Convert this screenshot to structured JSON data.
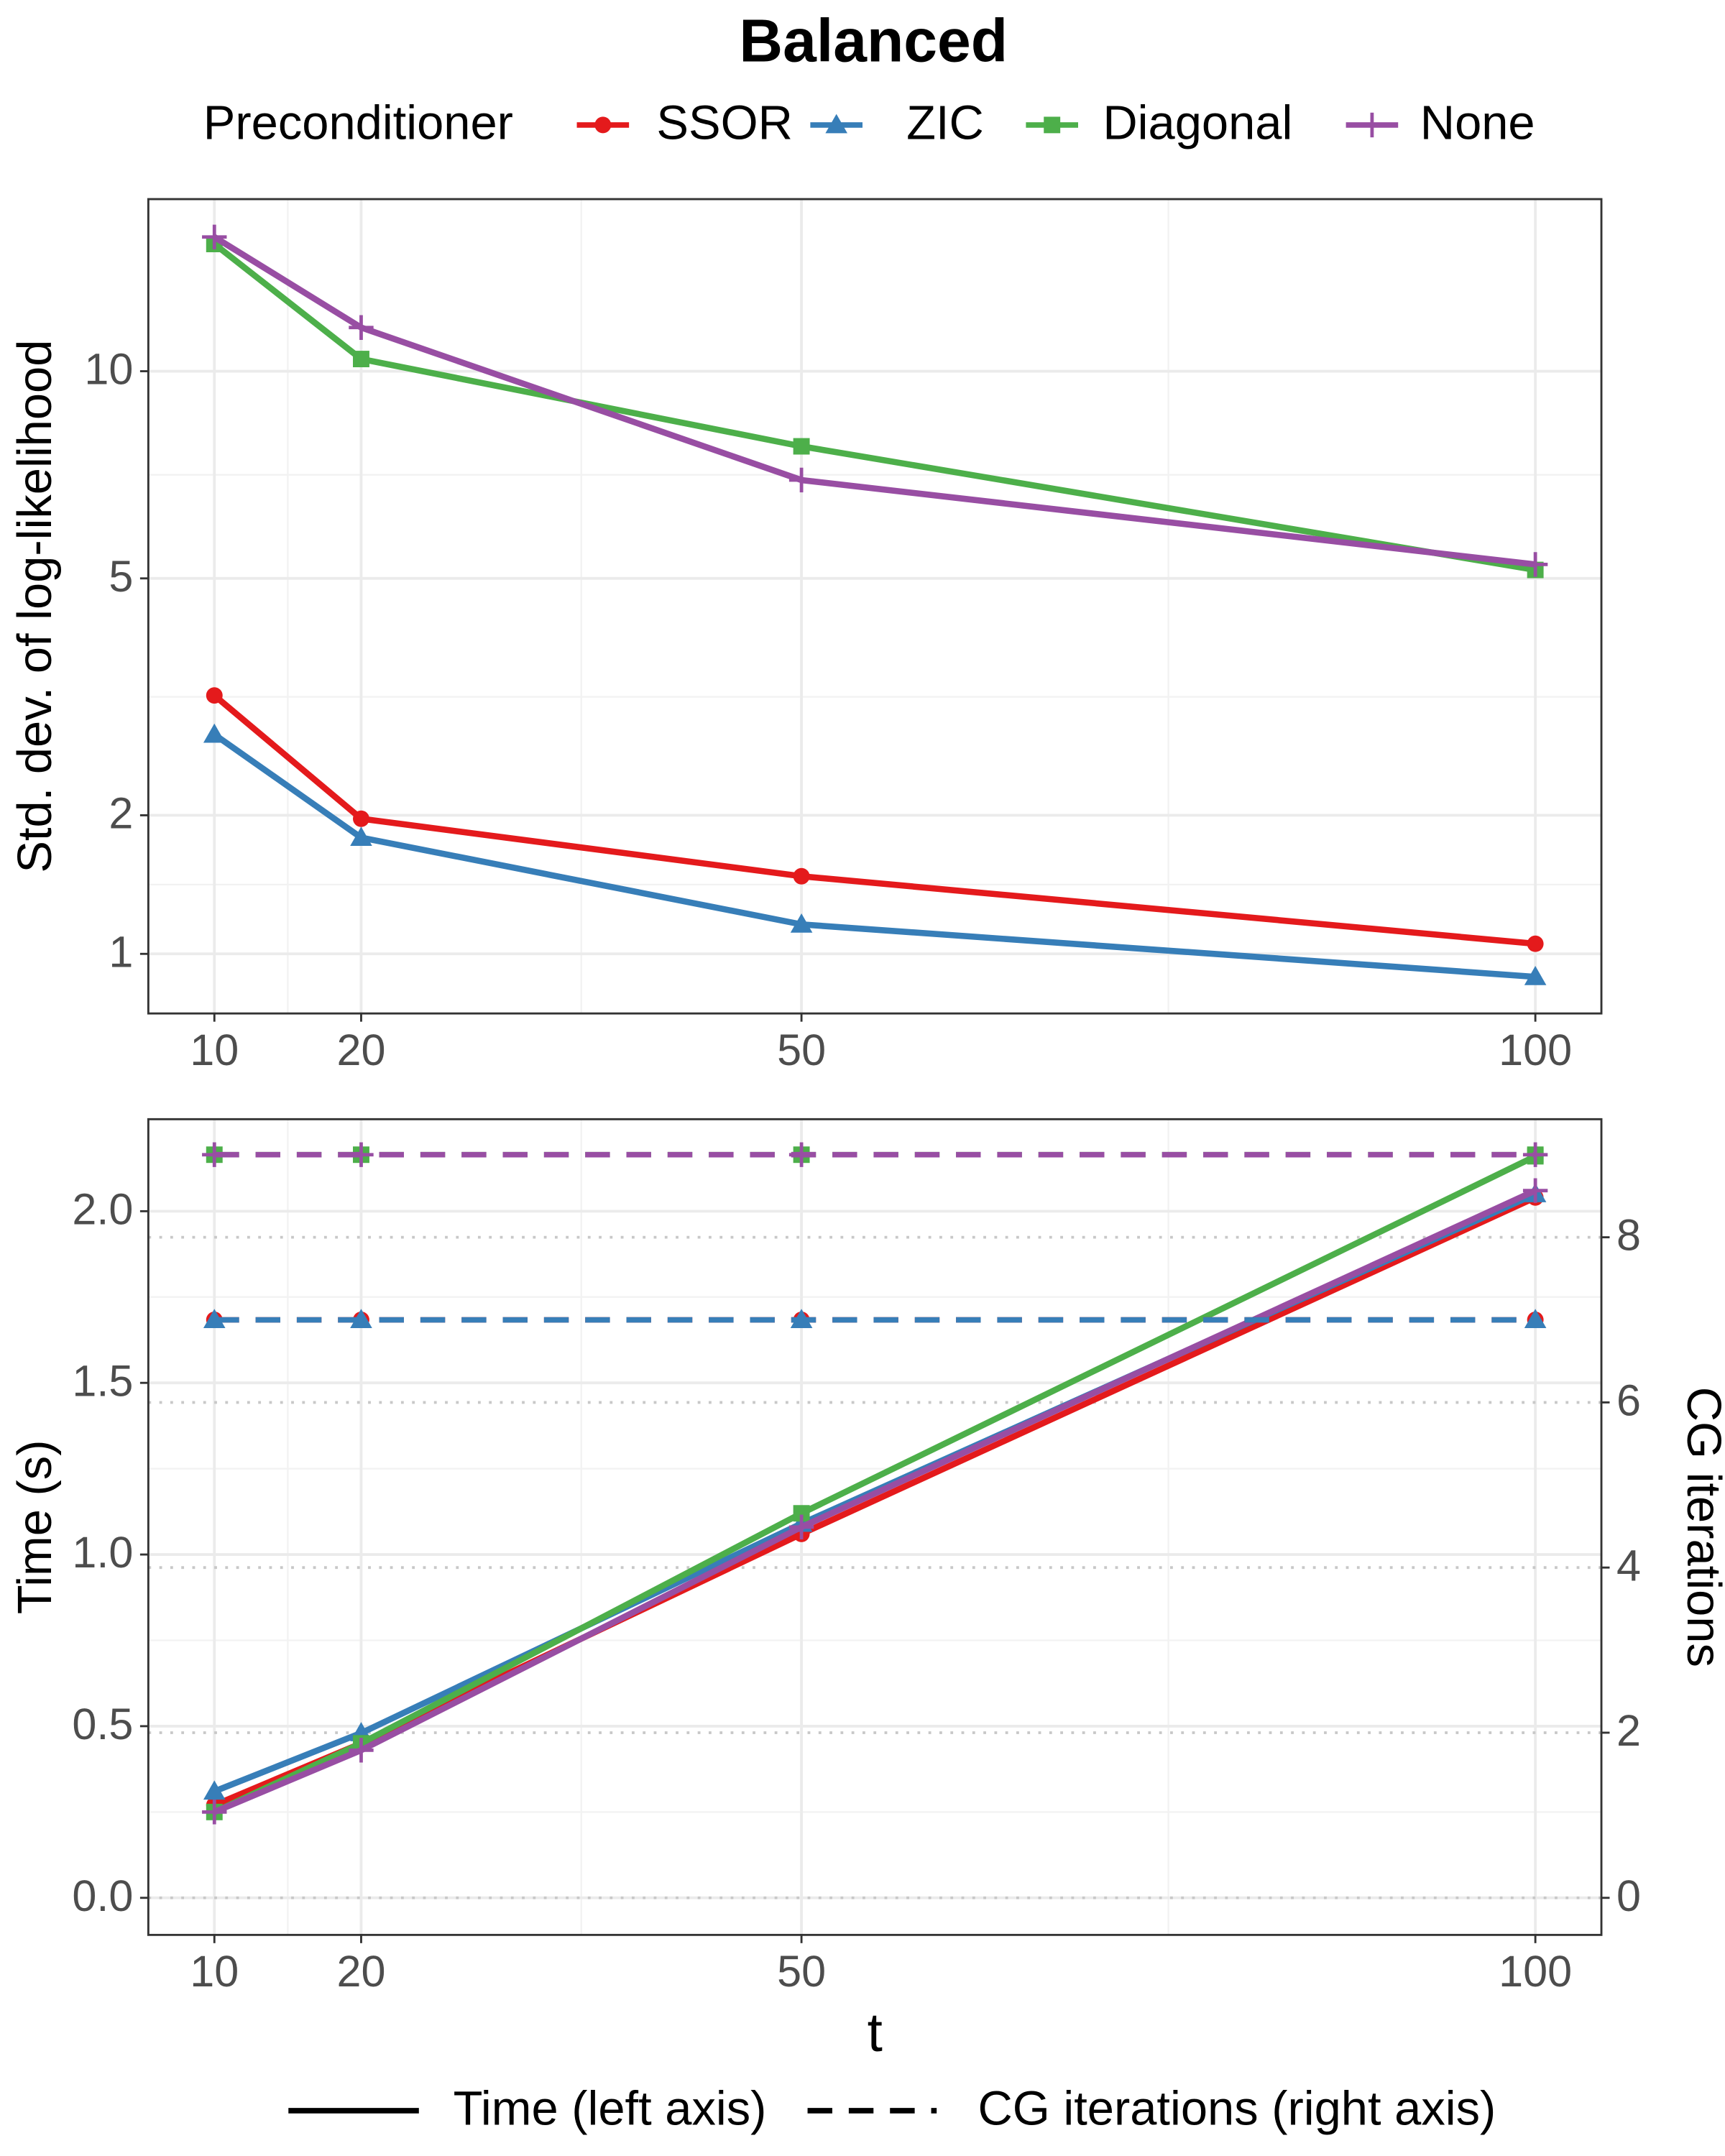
{
  "title": "Balanced",
  "legend_title": "Preconditioner",
  "linetype_legend": [
    "Time (left axis)",
    "CG iterations (right axis)"
  ],
  "chart_data": [
    {
      "type": "line",
      "ylabel": "Std. dev. of log-likelihood",
      "yscale": "log1p",
      "grid": true,
      "x": [
        10,
        20,
        50,
        100
      ],
      "xlim": [
        5.5,
        104.5
      ],
      "xticks": [
        10,
        20,
        50,
        100
      ],
      "ylim": [
        0.68,
        17.2
      ],
      "yticks": [
        1,
        2,
        5,
        10
      ],
      "series": [
        {
          "name": "SSOR",
          "color": "#e41a1c",
          "marker": "circle",
          "values": [
            3.26,
            1.97,
            1.51,
            1.06
          ]
        },
        {
          "name": "ZIC",
          "color": "#377eb8",
          "marker": "triangle",
          "values": [
            2.8,
            1.81,
            1.18,
            0.87
          ]
        },
        {
          "name": "Diagonal",
          "color": "#4daf4a",
          "marker": "square",
          "values": [
            14.96,
            10.4,
            7.83,
            5.15
          ]
        },
        {
          "name": "None",
          "color": "#984ea3",
          "marker": "plus",
          "values": [
            15.29,
            11.5,
            7.0,
            5.25
          ]
        }
      ]
    },
    {
      "type": "line",
      "xlabel": "t",
      "ylabel": "Time (s)",
      "y2label": "CG iterations",
      "grid": true,
      "x": [
        10,
        20,
        50,
        100
      ],
      "xlim": [
        5.5,
        104.5
      ],
      "xticks": [
        10,
        20,
        50,
        100
      ],
      "ylim": [
        -0.108,
        2.268
      ],
      "yticks": [
        {
          "value": 0,
          "label": "0.0"
        },
        0.5,
        {
          "value": 1,
          "label": "1.0"
        },
        1.5,
        {
          "value": 2,
          "label": "2.0"
        }
      ],
      "y2lim": [
        -0.449,
        9.43
      ],
      "y2ticks": [
        0,
        2,
        4,
        6,
        8
      ],
      "series": [
        {
          "name": "SSOR",
          "color": "#e41a1c",
          "marker": "circle",
          "linestyle": "solid",
          "values": [
            0.27,
            0.45,
            1.06,
            2.04
          ]
        },
        {
          "name": "ZIC",
          "color": "#377eb8",
          "marker": "triangle",
          "linestyle": "solid",
          "values": [
            0.31,
            0.48,
            1.09,
            2.05
          ]
        },
        {
          "name": "Diagonal",
          "color": "#4daf4a",
          "marker": "square",
          "linestyle": "solid",
          "values": [
            0.25,
            0.45,
            1.12,
            2.16
          ]
        },
        {
          "name": "None",
          "color": "#984ea3",
          "marker": "plus",
          "linestyle": "solid",
          "values": [
            0.25,
            0.43,
            1.08,
            2.06
          ]
        },
        {
          "name": "SSOR",
          "color": "#e41a1c",
          "marker": "circle",
          "linestyle": "dashed",
          "axis": "y2",
          "values": [
            7,
            7,
            7,
            7
          ]
        },
        {
          "name": "ZIC",
          "color": "#377eb8",
          "marker": "triangle",
          "linestyle": "dashed",
          "axis": "y2",
          "values": [
            7,
            7,
            7,
            7
          ]
        },
        {
          "name": "Diagonal",
          "color": "#4daf4a",
          "marker": "square",
          "linestyle": "dashed",
          "axis": "y2",
          "values": [
            9,
            9,
            9,
            9
          ]
        },
        {
          "name": "None",
          "color": "#984ea3",
          "marker": "plus",
          "linestyle": "dashed",
          "axis": "y2",
          "values": [
            9,
            9,
            9,
            9
          ]
        }
      ]
    }
  ]
}
